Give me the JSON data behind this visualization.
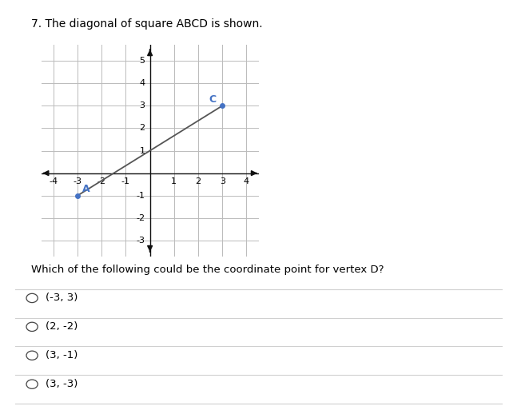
{
  "title": "7. The diagonal of square ABCD is shown.",
  "point_A": [
    -3,
    -1
  ],
  "point_C": [
    3,
    3
  ],
  "point_A_label": "A",
  "point_C_label": "C",
  "point_color": "#4472c4",
  "line_color": "#555555",
  "xlim": [
    -4.5,
    4.5
  ],
  "ylim": [
    -3.7,
    5.7
  ],
  "xticks": [
    -4,
    -3,
    -2,
    -1,
    0,
    1,
    2,
    3,
    4
  ],
  "yticks": [
    -3,
    -2,
    -1,
    0,
    1,
    2,
    3,
    4,
    5
  ],
  "grid_color": "#bbbbbb",
  "axis_color": "#111111",
  "question_text": "Which of the following could be the coordinate point for vertex D?",
  "options": [
    "(-3, 3)",
    "(2, -2)",
    "(3, -1)",
    "(3, -3)"
  ],
  "bg_color": "#ffffff",
  "title_fontsize": 10,
  "tick_fontsize": 8,
  "question_fontsize": 9.5,
  "option_fontsize": 9.5
}
